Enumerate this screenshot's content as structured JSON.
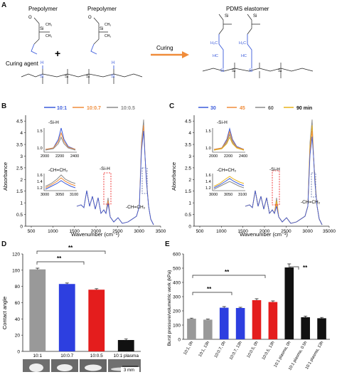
{
  "colors": {
    "blue": "#3b5bdb",
    "orange": "#f08c3a",
    "gray": "#8a8a8a",
    "gold": "#e8b21a",
    "red": "#e11",
    "darkred": "#b4232a",
    "black": "#111"
  },
  "panelA": {
    "label": "A",
    "prepolymer1": "Prepolymer",
    "prepolymer2": "Prepolymer",
    "curing_agent": "Curing agent",
    "plus": "+",
    "arrow_label": "Curing",
    "elastomer": "PDMS elastomer",
    "atoms": {
      "si": "Si",
      "o": "O",
      "ch3": "CH₃",
      "h": "H",
      "h2c": "H₂C",
      "hc": "HC"
    }
  },
  "panelB": {
    "label": "B",
    "ylabel": "Absorbance",
    "xlabel": "Wavenumber (cm⁻¹)",
    "legend": [
      "10:1",
      "10:0.7",
      "10:0.5"
    ],
    "inset_top_label": "-Si-H",
    "inset_bottom_label": "-CH=CH₂",
    "peak_label_sih": "-Si-H",
    "peak_label_ch": "-CH=CH₂",
    "yticks": [
      "0",
      "0.5",
      "1",
      "1.5",
      "2",
      "2.5",
      "3",
      "3.5",
      "4",
      "4.5"
    ],
    "xticks": [
      "500",
      "1000",
      "1500",
      "2000",
      "2500",
      "3000",
      "3500"
    ],
    "inset_top_yticks": [
      "1.5",
      "1.0"
    ],
    "inset_top_xticks": [
      "2000",
      "2200",
      "2400"
    ],
    "inset_bot_yticks": [
      "1.6",
      "1.4",
      "1.2"
    ],
    "inset_bot_xticks": [
      "3000",
      "3050",
      "3100"
    ]
  },
  "panelC": {
    "label": "C",
    "ylabel": "Absorbance",
    "xlabel": "Wavenumber (cm⁻¹)",
    "legend": [
      "30",
      "45",
      "60",
      "90 min"
    ],
    "inset_top_label": "-Si-H",
    "inset_bottom_label": "-CH=CH₂",
    "peak_label_sih": "-Si-H",
    "peak_label_ch": "-CH=CH₂",
    "yticks": [
      "0",
      "0.5",
      "1",
      "1.5",
      "2",
      "2.5",
      "3",
      "3.5",
      "4",
      "4.5"
    ],
    "xticks": [
      "500",
      "1000",
      "1500",
      "2000",
      "2500",
      "3000",
      "35000"
    ],
    "inset_top_yticks": [
      "1.5",
      "1.0"
    ],
    "inset_top_xticks": [
      "2000",
      "2200",
      "2400"
    ],
    "inset_bot_yticks": [
      "1.6",
      "1.4",
      "1.2"
    ],
    "inset_bot_xticks": [
      "3000",
      "3050",
      "3100"
    ]
  },
  "panelD": {
    "label": "D",
    "ylabel": "Contact angle",
    "sig1": "**",
    "sig2": "**",
    "scale_bar": "3 mm"
  },
  "panelE": {
    "label": "E",
    "ylabel": "Burst pressure/volumetric work (kPa)",
    "sig1": "**",
    "sig2": "**",
    "sig3": "**"
  },
  "chart_data": [
    {
      "type": "bar",
      "panel": "D",
      "categories": [
        "10:1",
        "10:0.7",
        "10:0.5",
        "10:1 plasma"
      ],
      "values": [
        101,
        83,
        76,
        14
      ],
      "errors": [
        1.5,
        1.2,
        1.2,
        1.5
      ],
      "colors": [
        "#999999",
        "#2d3fe0",
        "#e41d1d",
        "#111111"
      ],
      "ylabel": "Contact angle",
      "ylim": [
        0,
        120
      ],
      "yticks": [
        0,
        20,
        40,
        60,
        80,
        100,
        120
      ],
      "grid": false
    },
    {
      "type": "bar",
      "panel": "E",
      "categories": [
        "10:1, 0h",
        "10:1, 13h",
        "10:0.7, 0h",
        "10:0.7, 13h",
        "10:0.5, 0h",
        "10:0.5, 13h",
        "10:1 plasma, 0h",
        "10:1 plasma, 0.5h",
        "10:1 plasma, 13h"
      ],
      "values": [
        145,
        138,
        222,
        220,
        275,
        262,
        505,
        155,
        148
      ],
      "errors": [
        4,
        4,
        8,
        5,
        10,
        8,
        25,
        8,
        6
      ],
      "colors": [
        "#999999",
        "#999999",
        "#2d3fe0",
        "#2d3fe0",
        "#e41d1d",
        "#e41d1d",
        "#111111",
        "#111111",
        "#111111"
      ],
      "ylabel": "Burst pressure/volumetric work (kPa)",
      "ylim": [
        0,
        600
      ],
      "yticks": [
        0,
        100,
        200,
        300,
        400,
        500,
        600
      ],
      "grid": false
    }
  ]
}
